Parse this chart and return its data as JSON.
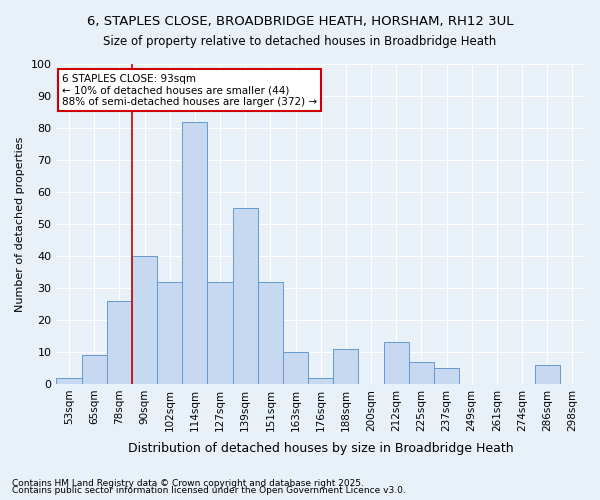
{
  "title": "6, STAPLES CLOSE, BROADBRIDGE HEATH, HORSHAM, RH12 3UL",
  "subtitle": "Size of property relative to detached houses in Broadbridge Heath",
  "xlabel": "Distribution of detached houses by size in Broadbridge Heath",
  "ylabel": "Number of detached properties",
  "footnote1": "Contains HM Land Registry data © Crown copyright and database right 2025.",
  "footnote2": "Contains public sector information licensed under the Open Government Licence v3.0.",
  "annotation_line1": "6 STAPLES CLOSE: 93sqm",
  "annotation_line2": "← 10% of detached houses are smaller (44)",
  "annotation_line3": "88% of semi-detached houses are larger (372) →",
  "categories": [
    "53sqm",
    "65sqm",
    "78sqm",
    "90sqm",
    "102sqm",
    "114sqm",
    "127sqm",
    "139sqm",
    "151sqm",
    "163sqm",
    "176sqm",
    "188sqm",
    "200sqm",
    "212sqm",
    "225sqm",
    "237sqm",
    "249sqm",
    "261sqm",
    "274sqm",
    "286sqm",
    "298sqm"
  ],
  "values": [
    2,
    9,
    26,
    40,
    32,
    82,
    32,
    55,
    32,
    10,
    2,
    11,
    0,
    13,
    7,
    5,
    0,
    0,
    0,
    6,
    0
  ],
  "bar_color": "#c6d9f0",
  "bar_edge_color": "#6699cc",
  "vline_x": 2,
  "vline_color": "#cc0000",
  "annotation_box_color": "#cc0000",
  "bg_color": "#e8f0f8",
  "grid_color": "#ffffff",
  "ylim": [
    0,
    100
  ],
  "yticks": [
    0,
    10,
    20,
    30,
    40,
    50,
    60,
    70,
    80,
    90,
    100
  ]
}
